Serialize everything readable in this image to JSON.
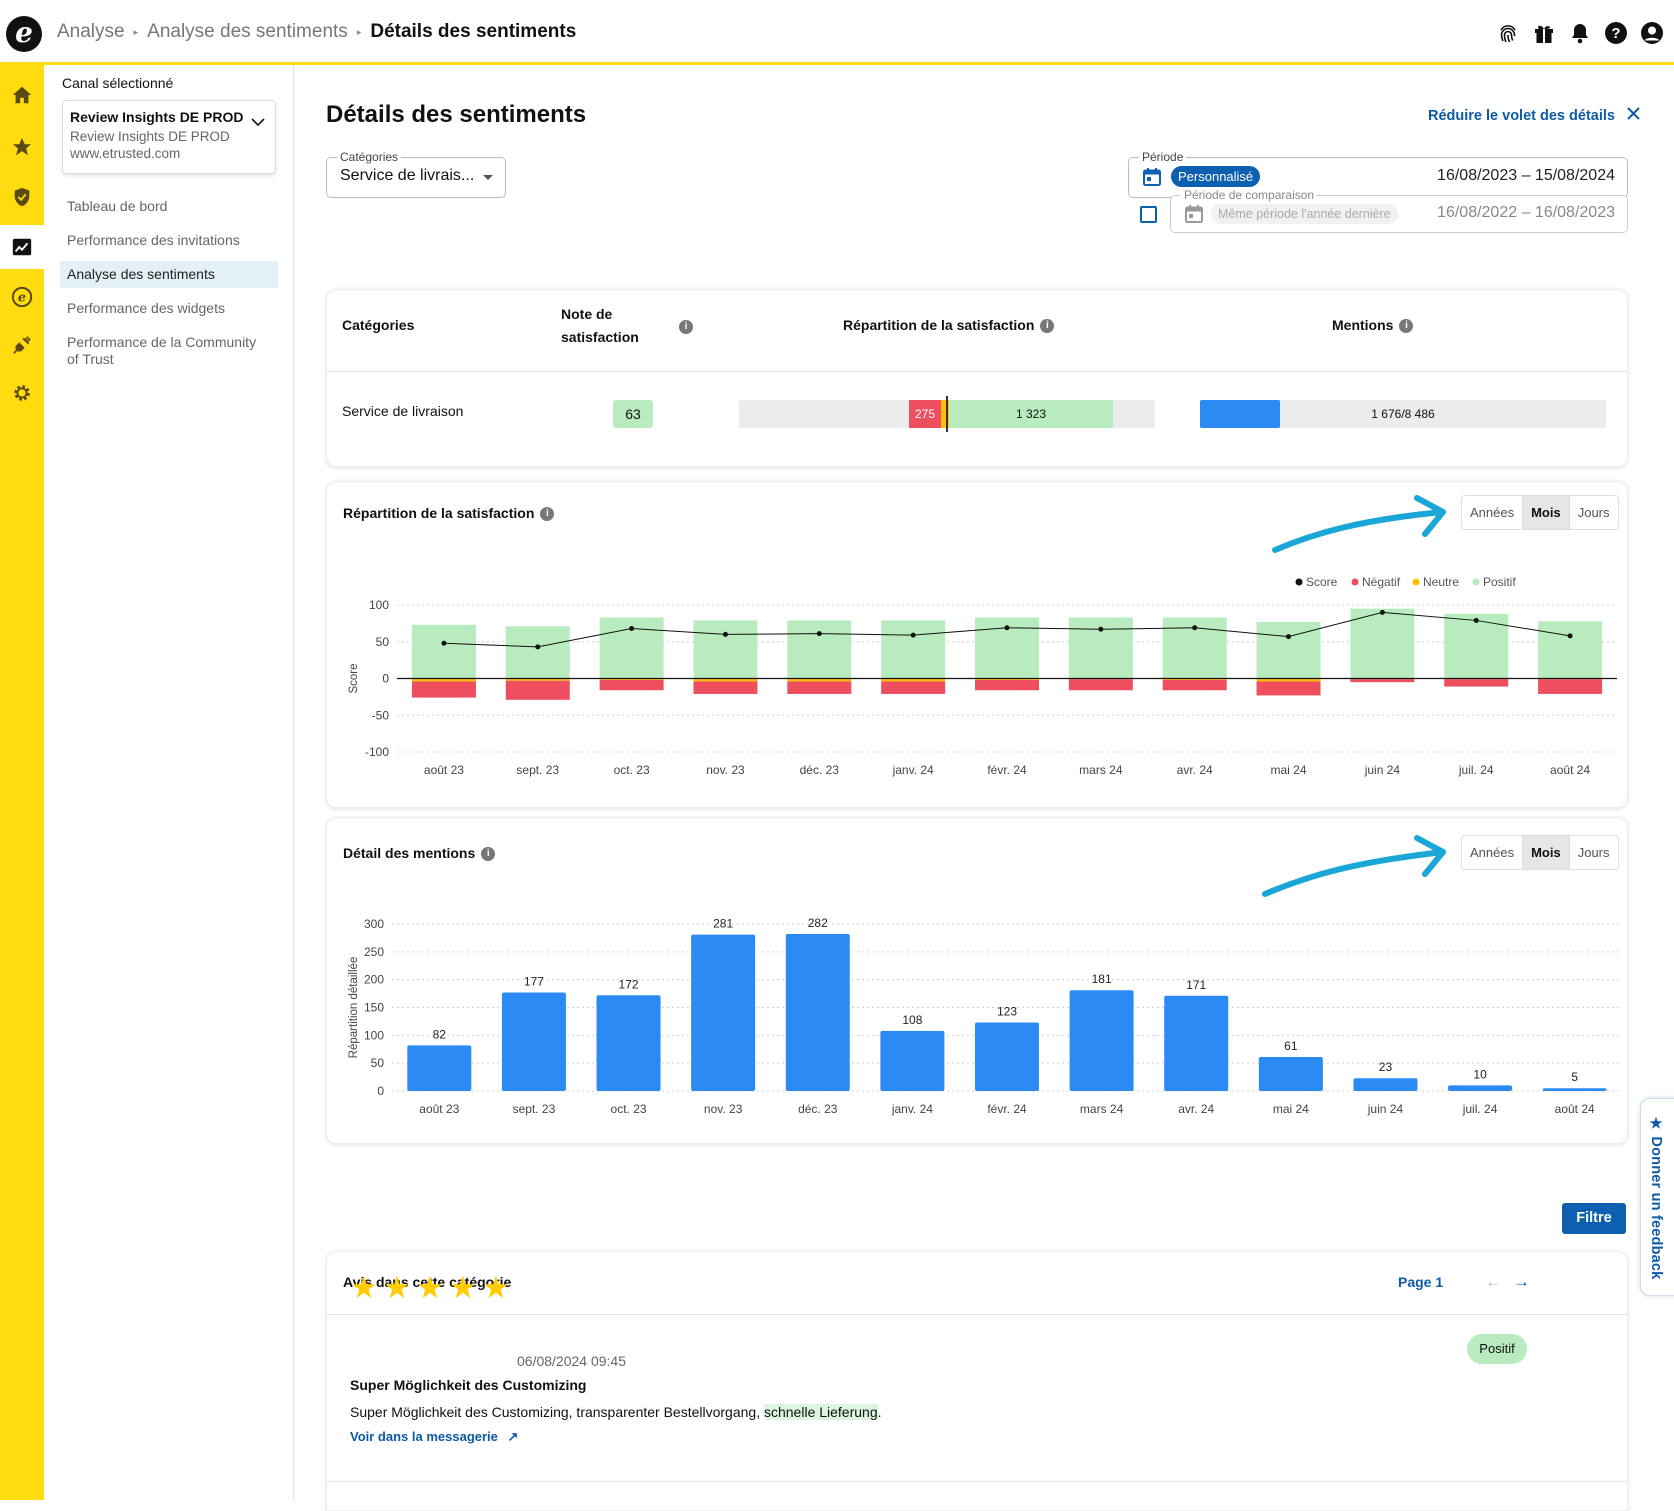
{
  "breadcrumb": {
    "items": [
      "Analyse",
      "Analyse des sentiments"
    ],
    "current": "Détails des sentiments"
  },
  "topbar_icons": [
    "fingerprint-icon",
    "gift-icon",
    "bell-icon",
    "help-icon",
    "user-icon"
  ],
  "rail_icons": [
    "home-icon",
    "star-icon",
    "shield-icon",
    "analytics-icon",
    "etrusted-icon",
    "plug-icon",
    "gear-icon"
  ],
  "sidebar": {
    "channel_label": "Canal sélectionné",
    "channel": {
      "name": "Review Insights DE PROD",
      "sub": "Review Insights DE PROD",
      "url": "www.etrusted.com"
    },
    "items": [
      {
        "label": "Tableau de bord",
        "active": false
      },
      {
        "label": "Performance des invitations",
        "active": false
      },
      {
        "label": "Analyse des sentiments",
        "active": true
      },
      {
        "label": "Performance des widgets",
        "active": false
      },
      {
        "label": "Performance de la Community of Trust",
        "active": false
      }
    ]
  },
  "page": {
    "title": "Détails des sentiments",
    "reduce_label": "Réduire le volet des détails"
  },
  "filters": {
    "categories_label": "Catégories",
    "categories_value": "Service de livrais...",
    "period_label": "Période",
    "period_pill": "Personnalisé",
    "period_range": "16/08/2023 – 15/08/2024",
    "comparison_label": "Période de comparaison",
    "comparison_pill": "Même période l'année dernière",
    "comparison_range": "16/08/2022 – 16/08/2023",
    "comparison_checked": false
  },
  "summary": {
    "headers": {
      "category": "Catégories",
      "score_line1": "Note de",
      "score_line2": "satisfaction",
      "split": "Répartition de la satisfaction",
      "mentions": "Mentions"
    },
    "row": {
      "category": "Service de livraison",
      "score": "63",
      "negative": "275",
      "positive": "1 323",
      "mentions": "1 676/8 486"
    },
    "neg_fraction": 0.164,
    "mentions_fraction": 0.198
  },
  "toggles": {
    "years": "Années",
    "months": "Mois",
    "days": "Jours",
    "selected": "months"
  },
  "chart1_title": "Répartition de la satisfaction",
  "chart2_title": "Détail des mentions",
  "chart_data": [
    {
      "type": "bar",
      "title": "Répartition de la satisfaction",
      "ylabel": "Score",
      "ylim": [
        -100,
        100
      ],
      "yticks": [
        100,
        50,
        0,
        -50,
        -100
      ],
      "legend": [
        "Score",
        "Négatif",
        "Neutre",
        "Positif"
      ],
      "legend_position": "top-right",
      "categories": [
        "août 23",
        "sept. 23",
        "oct. 23",
        "nov. 23",
        "déc. 23",
        "janv. 24",
        "févr. 24",
        "mars 24",
        "avr. 24",
        "mai 24",
        "juin 24",
        "juil. 24",
        "août 24"
      ],
      "series": [
        {
          "name": "Positif",
          "values": [
            73,
            71,
            83,
            79,
            79,
            79,
            83,
            83,
            83,
            77,
            95,
            88,
            78
          ]
        },
        {
          "name": "Neutre",
          "values": [
            -4,
            -3,
            -2,
            -4,
            -4,
            -4,
            -2,
            -1,
            -2,
            -4,
            -1,
            -1,
            -1
          ]
        },
        {
          "name": "Négatif",
          "values": [
            -22,
            -26,
            -14,
            -17,
            -17,
            -17,
            -14,
            -15,
            -14,
            -19,
            -4,
            -10,
            -20
          ]
        },
        {
          "name": "Score",
          "values": [
            48,
            43,
            68,
            60,
            61,
            59,
            69,
            67,
            69,
            57,
            90,
            79,
            58
          ]
        }
      ],
      "colors": {
        "Positif": "#b8ecbf",
        "Neutre": "#ffc107",
        "Négatif": "#ee4f5f",
        "Score": "#111111"
      }
    },
    {
      "type": "bar",
      "title": "Détail des mentions",
      "ylabel": "Répartition détaillée",
      "ylim": [
        0,
        300
      ],
      "yticks": [
        300,
        250,
        200,
        150,
        100,
        50,
        0
      ],
      "categories": [
        "août 23",
        "sept. 23",
        "oct. 23",
        "nov. 23",
        "déc. 23",
        "janv. 24",
        "févr. 24",
        "mars 24",
        "avr. 24",
        "mai 24",
        "juin 24",
        "juil. 24",
        "août 24"
      ],
      "values": [
        82,
        177,
        172,
        281,
        282,
        108,
        123,
        181,
        171,
        61,
        23,
        10,
        5
      ],
      "color": "#2b8af3"
    }
  ],
  "reviews": {
    "header": "Avis dans cette catégorie",
    "page_label": "Page 1",
    "item": {
      "rating": 5,
      "date": "06/08/2024 09:45",
      "badge": "Positif",
      "title": "Super Möglichkeit des Customizing",
      "text_before": "Super Möglichkeit des Customizing, transparenter Bestellvorgang, ",
      "text_highlight": "schnelle Lieferung",
      "text_after": ".",
      "link": "Voir dans la messagerie"
    }
  },
  "filter_button": "Filtre",
  "feedback_label": "★ Donner un feedback",
  "colors": {
    "accent_yellow": "#ffdc0f",
    "primary_blue": "#0d5fb0",
    "link_blue": "#0d5aa7",
    "positive_green": "#b8ecbf",
    "negative_red": "#ee4f5f",
    "neutral_orange": "#ffc107",
    "mention_blue": "#2b8af3"
  }
}
